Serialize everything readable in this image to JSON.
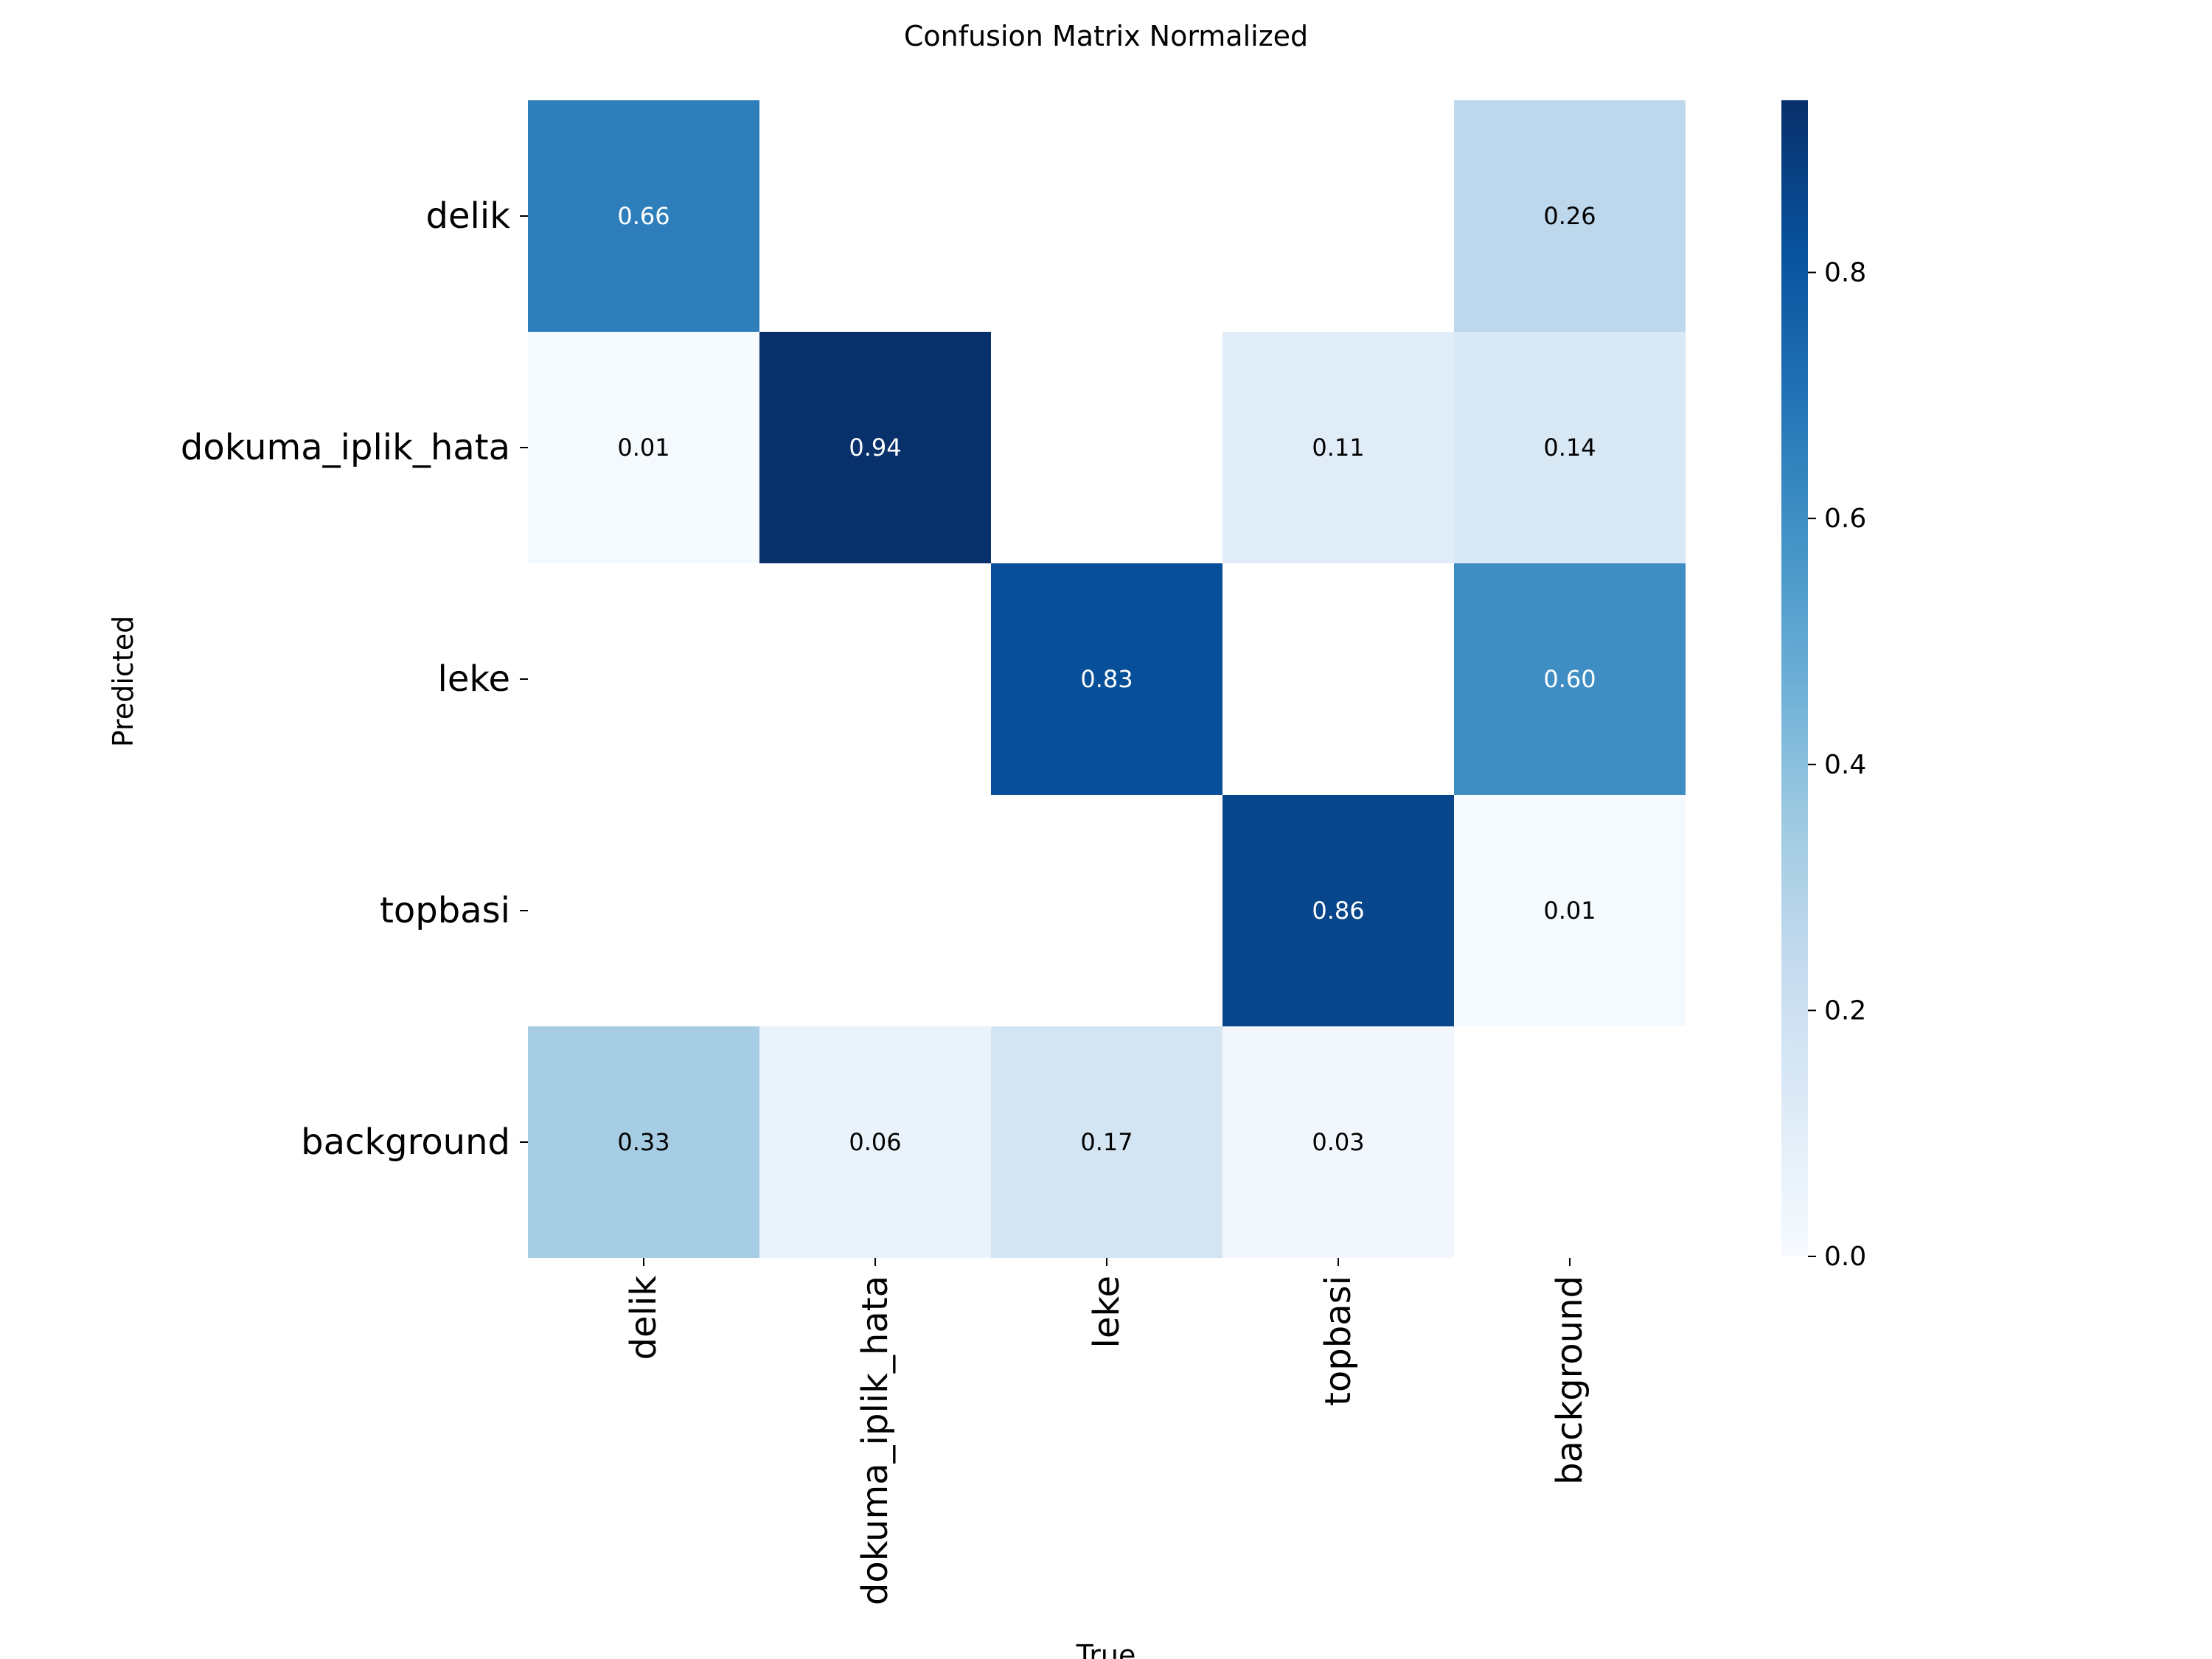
{
  "chart_data": {
    "type": "heatmap",
    "title": "Confusion Matrix Normalized",
    "xlabel": "True",
    "ylabel": "Predicted",
    "x_categories": [
      "delik",
      "dokuma_iplik_hata",
      "leke",
      "topbasi",
      "background"
    ],
    "y_categories": [
      "delik",
      "dokuma_iplik_hata",
      "leke",
      "topbasi",
      "background"
    ],
    "values": [
      [
        0.66,
        null,
        null,
        null,
        0.26
      ],
      [
        0.01,
        0.94,
        null,
        0.11,
        0.14
      ],
      [
        null,
        null,
        0.83,
        null,
        0.6
      ],
      [
        null,
        null,
        null,
        0.86,
        0.01
      ],
      [
        0.33,
        0.06,
        0.17,
        0.03,
        null
      ]
    ],
    "value_labels": [
      [
        "0.66",
        "",
        "",
        "",
        "0.26"
      ],
      [
        "0.01",
        "0.94",
        "",
        "0.11",
        "0.14"
      ],
      [
        "",
        "",
        "0.83",
        "",
        "0.60"
      ],
      [
        "",
        "",
        "",
        "0.86",
        "0.01"
      ],
      [
        "0.33",
        "0.06",
        "0.17",
        "0.03",
        ""
      ]
    ],
    "colorbar": {
      "min": 0.0,
      "max": 0.94,
      "ticks": [
        0.0,
        0.2,
        0.4,
        0.6,
        0.8
      ],
      "tick_labels": [
        "0.0",
        "0.2",
        "0.4",
        "0.6",
        "0.8"
      ],
      "colormap": "Blues"
    }
  }
}
